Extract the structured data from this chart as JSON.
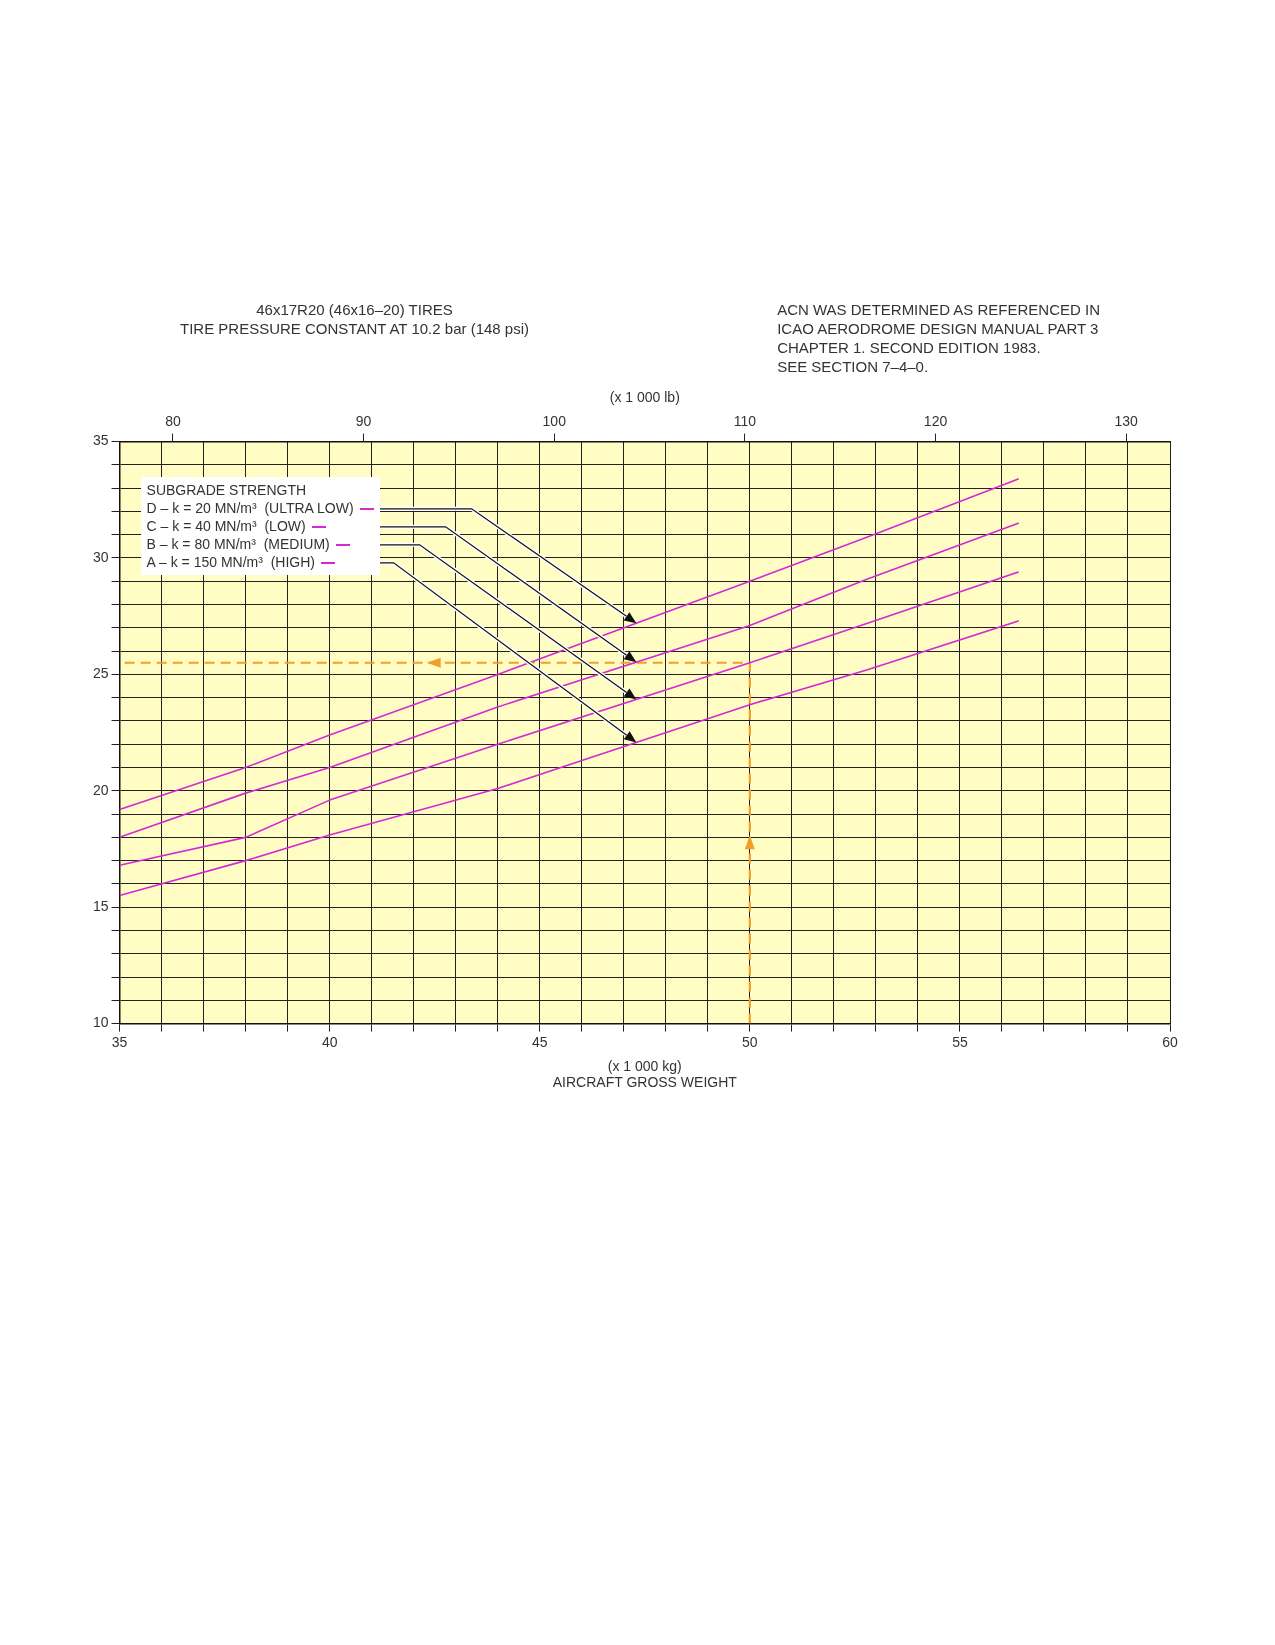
{
  "chart_data": {
    "type": "line",
    "title": "46x17R20 (46x16–20) TIRES",
    "subtitle": "TIRE PRESSURE CONSTANT AT 10.2 bar (148 psi)",
    "annotations": [
      "ACN WAS DETERMINED AS REFERENCED IN\nICAO AERODROME DESIGN MANUAL PART 3\nCHAPTER 1. SECOND EDITION 1983.\nSEE SECTION 7–4–0."
    ],
    "xlabel": "(x 1 000 kg)\nAIRCRAFT GROSS WEIGHT",
    "x2label": "(x 1 000 lb)",
    "legend_title": "SUBGRADE STRENGTH",
    "legend": "top left",
    "grid": true,
    "xlim": [
      35,
      60
    ],
    "xticks": [
      35,
      {
        "value": 36,
        "label": null
      },
      {
        "value": 37,
        "label": null
      },
      {
        "value": 38,
        "label": null
      },
      {
        "value": 39,
        "label": null
      },
      40,
      {
        "value": 41,
        "label": null
      },
      {
        "value": 42,
        "label": null
      },
      {
        "value": 43,
        "label": null
      },
      {
        "value": 44,
        "label": null
      },
      45,
      {
        "value": 46,
        "label": null
      },
      {
        "value": 47,
        "label": null
      },
      {
        "value": 48,
        "label": null
      },
      {
        "value": 49,
        "label": null
      },
      50,
      {
        "value": 51,
        "label": null
      },
      {
        "value": 52,
        "label": null
      },
      {
        "value": 53,
        "label": null
      },
      {
        "value": 54,
        "label": null
      },
      55,
      {
        "value": 56,
        "label": null
      },
      {
        "value": 57,
        "label": null
      },
      {
        "value": 58,
        "label": null
      },
      {
        "value": 59,
        "label": null
      },
      60
    ],
    "x2lim": [
      77.2,
      132.3
    ],
    "x2ticks": [
      80,
      90,
      100,
      110,
      120,
      130
    ],
    "ylim": [
      10,
      35
    ],
    "yticks": [
      10,
      {
        "value": 11,
        "label": null
      },
      {
        "value": 12,
        "label": null
      },
      {
        "value": 13,
        "label": null
      },
      {
        "value": 14,
        "label": null
      },
      15,
      {
        "value": 16,
        "label": null
      },
      {
        "value": 17,
        "label": null
      },
      {
        "value": 18,
        "label": null
      },
      {
        "value": 19,
        "label": null
      },
      20,
      {
        "value": 21,
        "label": null
      },
      {
        "value": 22,
        "label": null
      },
      {
        "value": 23,
        "label": null
      },
      {
        "value": 24,
        "label": null
      },
      25,
      {
        "value": 26,
        "label": null
      },
      {
        "value": 27,
        "label": null
      },
      {
        "value": 28,
        "label": null
      },
      {
        "value": 29,
        "label": null
      },
      30,
      {
        "value": 31,
        "label": null
      },
      {
        "value": 32,
        "label": null
      },
      {
        "value": 33,
        "label": null
      },
      {
        "value": 34,
        "label": null
      },
      35
    ],
    "series": [
      {
        "name": "D – k = 20 MN/m³  (ULTRA LOW)",
        "color": "#d42ad4",
        "x": [
          35,
          38,
          40,
          44,
          50,
          52.8,
          56.4
        ],
        "values": [
          19.2,
          21.0,
          22.4,
          25.0,
          29.0,
          30.9,
          33.4
        ]
      },
      {
        "name": "C – k = 40 MN/m³  (LOW)",
        "color": "#d42ad4",
        "x": [
          35,
          38,
          40,
          44,
          50,
          52.8,
          56.4
        ],
        "values": [
          18.0,
          19.9,
          21.0,
          23.6,
          27.1,
          29.1,
          31.5
        ]
      },
      {
        "name": "B – k = 80 MN/m³  (MEDIUM)",
        "color": "#d42ad4",
        "x": [
          35,
          38,
          40,
          44,
          50,
          52.8,
          56.4
        ],
        "values": [
          16.8,
          18.0,
          19.6,
          22.0,
          25.5,
          27.2,
          29.4
        ]
      },
      {
        "name": "A – k = 150 MN/m³  (HIGH)",
        "color": "#d42ad4",
        "x": [
          35,
          38,
          40,
          44,
          50,
          52.8,
          56.4
        ],
        "values": [
          15.5,
          17.0,
          18.1,
          20.1,
          23.7,
          25.2,
          27.3
        ]
      },
      {
        "color": "#f0a028",
        "line_style": "dashed",
        "x": [
          50,
          50,
          35
        ],
        "values": [
          10,
          25.5,
          25.5
        ]
      }
    ]
  }
}
